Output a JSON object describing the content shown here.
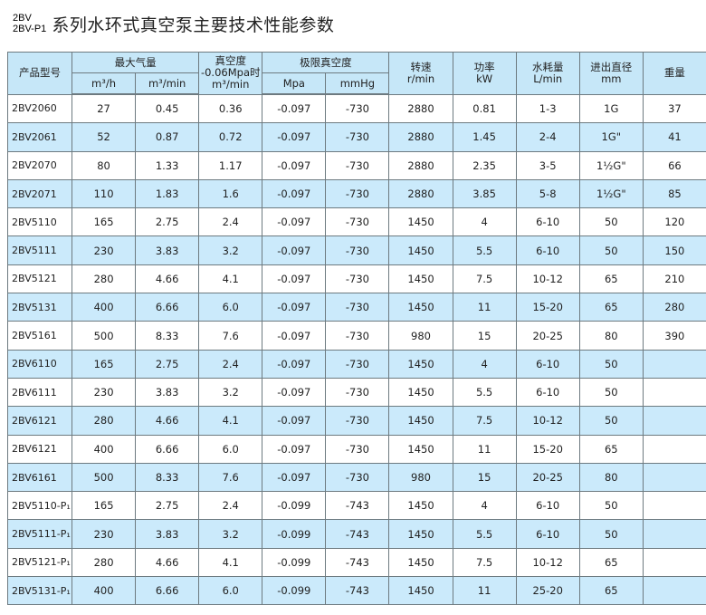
{
  "title": {
    "prefix_top": "2BV",
    "prefix_bottom": "2BV-P1",
    "text": "系列水环式真空泵主要技术性能参数"
  },
  "header": {
    "model": "产品型号",
    "max_air": "最大气量",
    "m3h": "m³/h",
    "m3min": "m³/min",
    "vacuum_line1": "真空度",
    "vacuum_line2": "-0.06Mpa时",
    "vacuum_line3": "m³/min",
    "limit_vacuum": "极限真空度",
    "mpa": "Mpa",
    "mmhg": "mmHg",
    "speed": "转速",
    "speed_unit": "r/min",
    "power": "功率",
    "power_unit": "kW",
    "water": "水耗量",
    "water_unit": "L/min",
    "diameter": "进出直径",
    "diameter_unit": "mm",
    "weight": "重量"
  },
  "colors": {
    "header_bg": "#c6e7f8",
    "alt_row_bg": "#cbeafb",
    "border": "#6d7a80"
  },
  "rows": [
    [
      "2BV2060",
      "27",
      "0.45",
      "0.36",
      "-0.097",
      "-730",
      "2880",
      "0.81",
      "1-3",
      "1G",
      "37"
    ],
    [
      "2BV2061",
      "52",
      "0.87",
      "0.72",
      "-0.097",
      "-730",
      "2880",
      "1.45",
      "2-4",
      "1G\"",
      "41"
    ],
    [
      "2BV2070",
      "80",
      "1.33",
      "1.17",
      "-0.097",
      "-730",
      "2880",
      "2.35",
      "3-5",
      "1½G\"",
      "66"
    ],
    [
      "2BV2071",
      "110",
      "1.83",
      "1.6",
      "-0.097",
      "-730",
      "2880",
      "3.85",
      "5-8",
      "1½G\"",
      "85"
    ],
    [
      "2BV5110",
      "165",
      "2.75",
      "2.4",
      "-0.097",
      "-730",
      "1450",
      "4",
      "6-10",
      "50",
      "120"
    ],
    [
      "2BV5111",
      "230",
      "3.83",
      "3.2",
      "-0.097",
      "-730",
      "1450",
      "5.5",
      "6-10",
      "50",
      "150"
    ],
    [
      "2BV5121",
      "280",
      "4.66",
      "4.1",
      "-0.097",
      "-730",
      "1450",
      "7.5",
      "10-12",
      "65",
      "210"
    ],
    [
      "2BV5131",
      "400",
      "6.66",
      "6.0",
      "-0.097",
      "-730",
      "1450",
      "11",
      "15-20",
      "65",
      "280"
    ],
    [
      "2BV5161",
      "500",
      "8.33",
      "7.6",
      "-0.097",
      "-730",
      "980",
      "15",
      "20-25",
      "80",
      "390"
    ],
    [
      "2BV6110",
      "165",
      "2.75",
      "2.4",
      "-0.097",
      "-730",
      "1450",
      "4",
      "6-10",
      "50",
      ""
    ],
    [
      "2BV6111",
      "230",
      "3.83",
      "3.2",
      "-0.097",
      "-730",
      "1450",
      "5.5",
      "6-10",
      "50",
      ""
    ],
    [
      "2BV6121",
      "280",
      "4.66",
      "4.1",
      "-0.097",
      "-730",
      "1450",
      "7.5",
      "10-12",
      "50",
      ""
    ],
    [
      "2BV6121",
      "400",
      "6.66",
      "6.0",
      "-0.097",
      "-730",
      "1450",
      "11",
      "15-20",
      "65",
      ""
    ],
    [
      "2BV6161",
      "500",
      "8.33",
      "7.6",
      "-0.097",
      "-730",
      "980",
      "15",
      "20-25",
      "80",
      ""
    ],
    [
      "2BV5110-P₁",
      "165",
      "2.75",
      "2.4",
      "-0.099",
      "-743",
      "1450",
      "4",
      "6-10",
      "50",
      ""
    ],
    [
      "2BV5111-P₁",
      "230",
      "3.83",
      "3.2",
      "-0.099",
      "-743",
      "1450",
      "5.5",
      "6-10",
      "50",
      ""
    ],
    [
      "2BV5121-P₁",
      "280",
      "4.66",
      "4.1",
      "-0.099",
      "-743",
      "1450",
      "7.5",
      "10-12",
      "65",
      ""
    ],
    [
      "2BV5131-P₁",
      "400",
      "6.66",
      "6.0",
      "-0.099",
      "-743",
      "1450",
      "11",
      "25-20",
      "65",
      ""
    ]
  ]
}
